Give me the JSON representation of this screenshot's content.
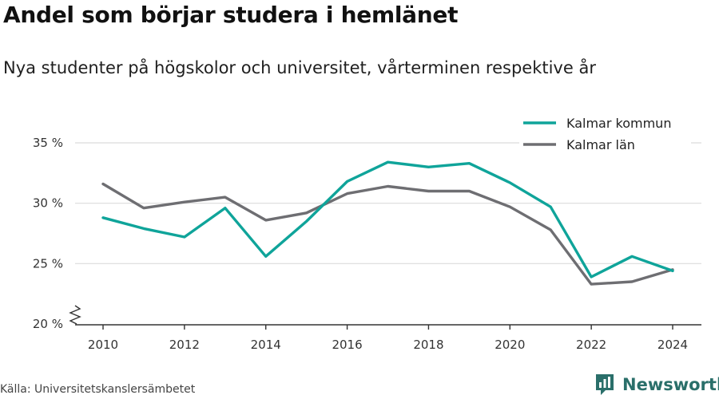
{
  "header": {
    "title": "Andel som börjar studera i hemlänet",
    "subtitle": "Nya studenter på högskolor och universitet, vårterminen respektive år"
  },
  "footer": {
    "source": "Källa: Universitetskanslersämbetet",
    "brand": "Newsworthy",
    "brand_icon": "newsworthy-logo-icon",
    "brand_color": "#2a6f6a"
  },
  "chart_data": {
    "type": "line",
    "x": [
      2010,
      2011,
      2012,
      2013,
      2014,
      2015,
      2016,
      2017,
      2018,
      2019,
      2020,
      2021,
      2022,
      2023,
      2024
    ],
    "x_ticks": [
      "2010",
      "2012",
      "2014",
      "2016",
      "2018",
      "2020",
      "2022",
      "2024"
    ],
    "y_ticks": [
      "20 %",
      "25 %",
      "30 %",
      "35 %"
    ],
    "y_tick_values": [
      20,
      25,
      30,
      35
    ],
    "ylim": [
      20,
      35
    ],
    "grid": true,
    "y_axis_break": true,
    "legend_position": "top-right",
    "series": [
      {
        "name": "Kalmar kommun",
        "color": "#0fa49a",
        "values": [
          28.8,
          27.9,
          27.2,
          29.6,
          25.6,
          28.5,
          31.8,
          33.4,
          33.0,
          33.3,
          31.7,
          29.7,
          23.9,
          25.6,
          24.4
        ]
      },
      {
        "name": "Kalmar län",
        "color": "#6e6e72",
        "values": [
          31.6,
          29.6,
          30.1,
          30.5,
          28.6,
          29.2,
          30.8,
          31.4,
          31.0,
          31.0,
          29.7,
          27.8,
          23.3,
          23.5,
          24.5
        ]
      }
    ]
  }
}
